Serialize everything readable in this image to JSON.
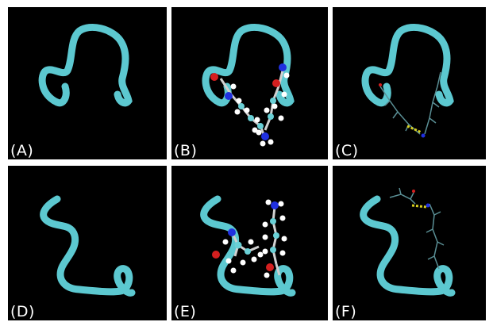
{
  "panels": [
    {
      "label": "(A)"
    },
    {
      "label": "(B)"
    },
    {
      "label": "(C)"
    },
    {
      "label": "(D)"
    },
    {
      "label": "(E)"
    },
    {
      "label": "(F)"
    }
  ],
  "colors": {
    "background": "#000000",
    "ribbon": "#5cc8d0",
    "carbon": "#6ad0d6",
    "hydrogen": "#ffffff",
    "oxygen": "#d41f1f",
    "nitrogen": "#2030e0",
    "hbond": "#d8d020"
  }
}
